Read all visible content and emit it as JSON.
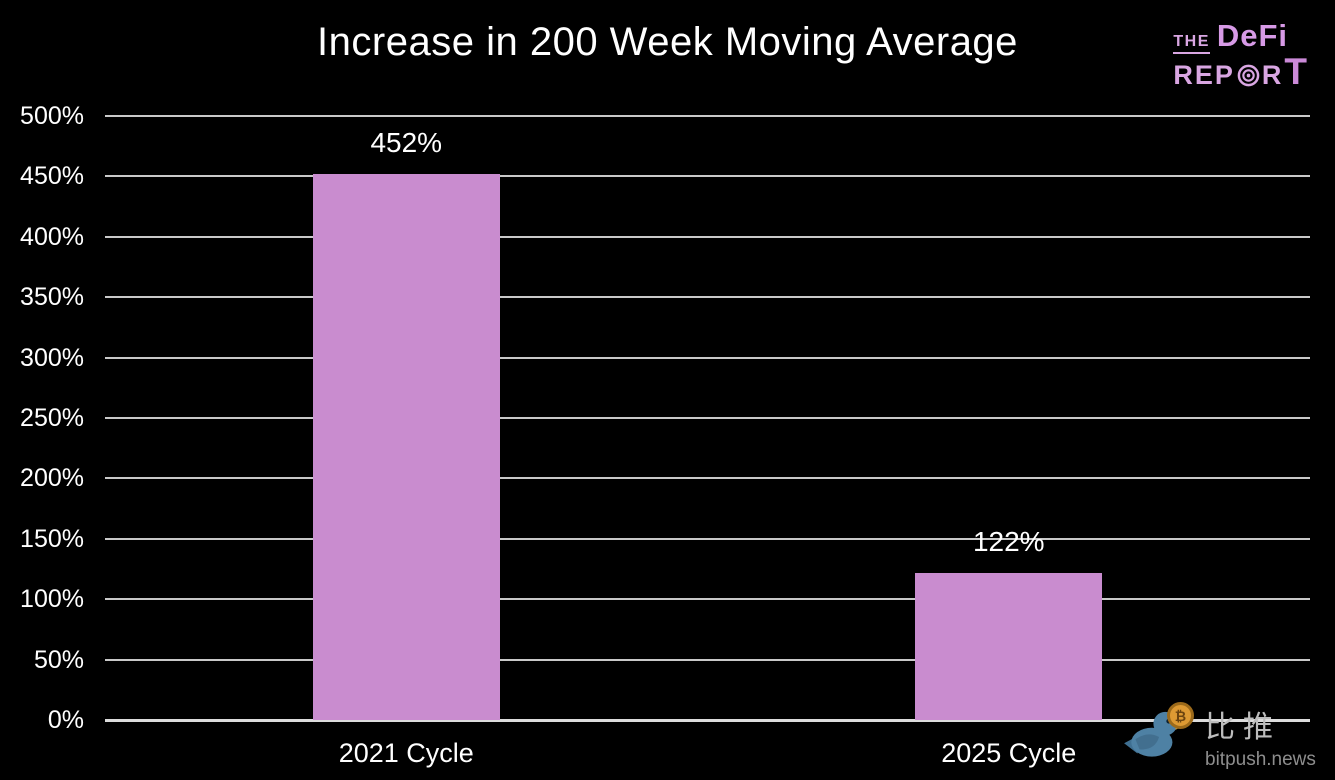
{
  "page": {
    "background": "#000000"
  },
  "title": "Increase in 200 Week Moving Average",
  "logo": {
    "the": "THE",
    "defi": "DeFi",
    "report_pre": "REP",
    "report_post": "R",
    "report_t": "T",
    "color": "#d9a6e2"
  },
  "watermark": {
    "cn": "比推",
    "site": "bitpush.news",
    "coin_symbol": "₿"
  },
  "chart_data": {
    "type": "bar",
    "title": "Increase in 200 Week Moving Average",
    "categories": [
      "2021 Cycle",
      "2025 Cycle"
    ],
    "values": [
      452,
      122
    ],
    "value_labels": [
      "452%",
      "122%"
    ],
    "xlabel": "",
    "ylabel": "",
    "ylim": [
      0,
      500
    ],
    "yticks": [
      0,
      50,
      100,
      150,
      200,
      250,
      300,
      350,
      400,
      450,
      500
    ],
    "ytick_labels": [
      "0%",
      "50%",
      "100%",
      "150%",
      "200%",
      "250%",
      "300%",
      "350%",
      "400%",
      "450%",
      "500%"
    ],
    "grid": true,
    "legend": "none",
    "bar_color": "#c98ccf",
    "grid_color": "#c9c9c9",
    "axis_line_color": "#dcdcdc",
    "label_color": "#ffffff",
    "background": "#000000"
  }
}
